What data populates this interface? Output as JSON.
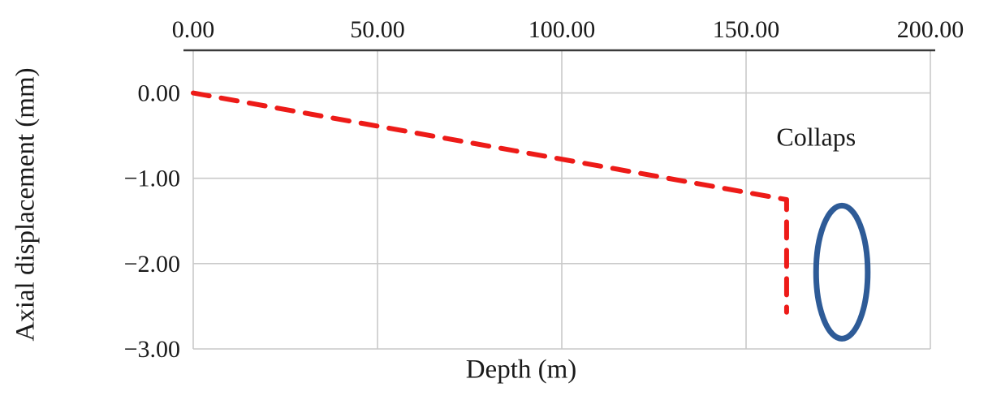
{
  "chart_data": {
    "type": "line",
    "title": "",
    "xlabel": "Depth (m)",
    "ylabel": "Axial displacement (mm)",
    "x_axis_position": "top",
    "xlim": [
      0,
      200
    ],
    "ylim": [
      -3,
      0.5
    ],
    "x_ticks": [
      0,
      50,
      100,
      150,
      200
    ],
    "x_tick_labels": [
      "0.00",
      "50.00",
      "100.00",
      "150.00",
      "200.00"
    ],
    "y_ticks": [
      0,
      -1,
      -2,
      -3
    ],
    "y_tick_labels": [
      "0.00",
      "−1.00",
      "−2.00",
      "−3.00"
    ],
    "grid": true,
    "legend": "none",
    "colors": {
      "grid": "#c9c9c9",
      "axis": "#3a3a3a",
      "text": "#1a1a1a",
      "background": "#ffffff"
    },
    "series": [
      {
        "name": "axial-displacement",
        "color": "#ed1b18",
        "line_style": "dashed",
        "points": [
          [
            0,
            0
          ],
          [
            161,
            -1.25
          ],
          [
            161,
            -2.57
          ]
        ]
      }
    ],
    "annotations": [
      {
        "type": "text",
        "text": "Collaps",
        "x": 169,
        "y": -0.52
      },
      {
        "type": "ellipse",
        "x": 176,
        "y": -2.1,
        "rx": 7,
        "ry": 0.78,
        "color": "#2e5b97"
      }
    ]
  }
}
